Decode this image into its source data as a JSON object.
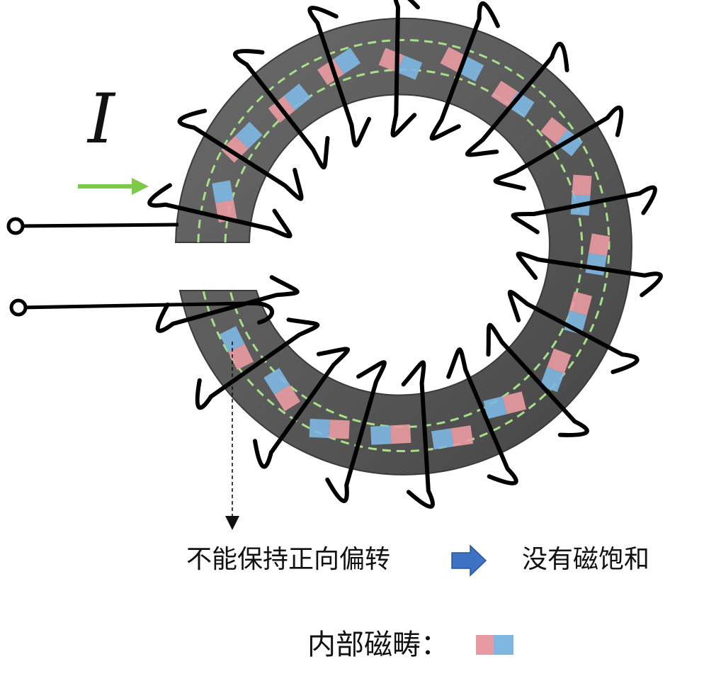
{
  "diagram": {
    "current_symbol": "I",
    "caption_left": "不能保持正向偏转",
    "caption_right": "没有磁饱和",
    "legend_label": "内部磁畴：",
    "colors": {
      "core": "#5a5a5a",
      "core_edge": "#3c3c3c",
      "flux_path": "#a8e08a",
      "domain_north": "#e89aa2",
      "domain_south": "#7fb6e0",
      "winding": "#000000",
      "current_arrow": "#7dc94a",
      "result_arrow": "#3d72c4"
    },
    "icons": [
      "terminal-icon",
      "current-arrow-icon",
      "result-arrow-icon",
      "domain-pair-icon"
    ]
  }
}
